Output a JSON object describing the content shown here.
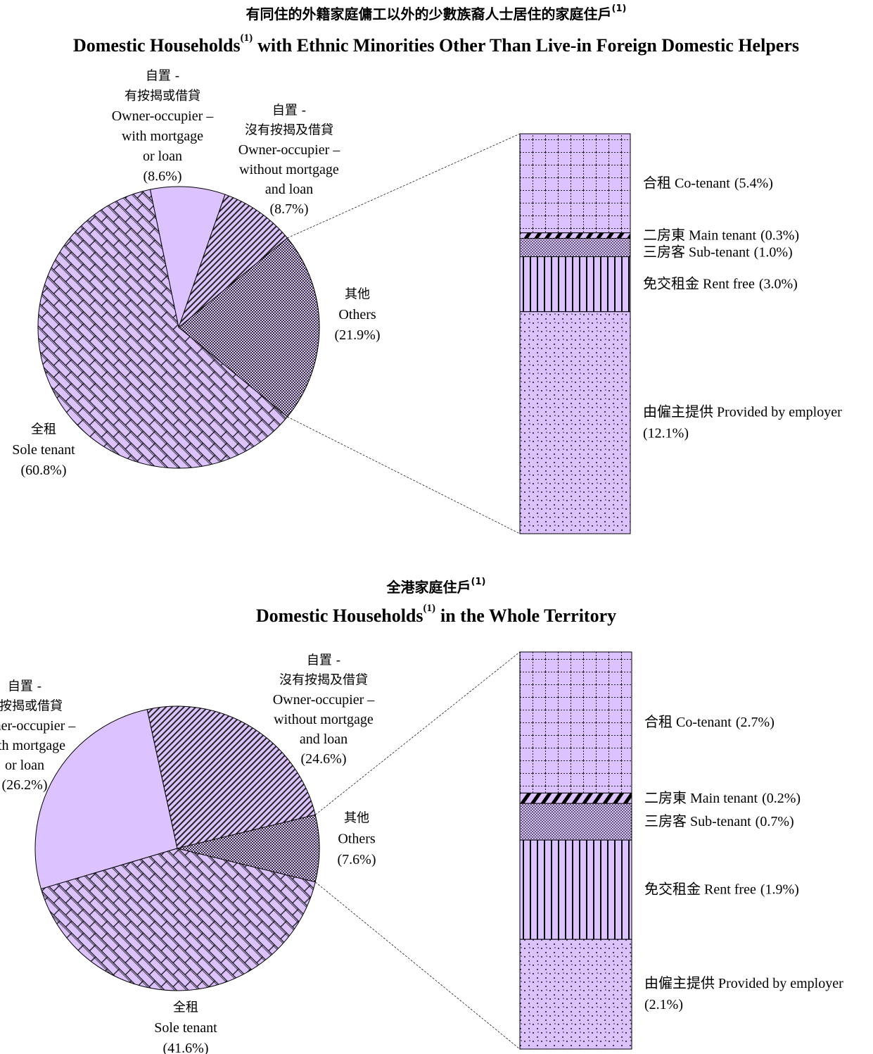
{
  "chart_data": [
    {
      "type": "pie",
      "title_zh": "有同住的外籍家庭傭工以外的少數族裔人士居住的家庭住戶",
      "title_note": "(1)",
      "title_en": "Domestic Households",
      "title_en_rest": "with Ethnic Minorities Other Than Live-in Foreign Domestic Helpers",
      "color": "#dcc2ff",
      "categories": [
        {
          "zh": [
            "自置 -",
            "有按揭或借貸"
          ],
          "en": [
            "Owner-occupier –",
            "with mortgage",
            "or loan"
          ]
        },
        {
          "zh": [
            "自置 -",
            "沒有按揭及借貸"
          ],
          "en": [
            "Owner-occupier –",
            "without mortgage",
            "and loan"
          ]
        },
        {
          "zh": [
            "其他"
          ],
          "en": [
            "Others"
          ]
        },
        {
          "zh": [
            "全租"
          ],
          "en": [
            "Sole tenant"
          ]
        }
      ],
      "values": [
        8.6,
        8.7,
        21.9,
        60.8
      ],
      "value_labels": [
        "(8.6%)",
        "(8.7%)",
        "(21.9%)",
        "(60.8%)"
      ],
      "breakdown": {
        "type": "bar",
        "categories": [
          "合租 Co-tenant",
          "二房東 Main tenant",
          "三房客 Sub-tenant",
          "免交租金 Rent free",
          "由僱主提供 Provided by employer"
        ],
        "values": [
          5.4,
          0.3,
          1.0,
          3.0,
          12.1
        ],
        "value_labels": [
          "(5.4%)",
          "(0.3%)",
          "(1.0%)",
          "(3.0%)",
          "(12.1%)"
        ]
      }
    },
    {
      "type": "pie",
      "title_zh": "全港家庭住戶",
      "title_note": "(1)",
      "title_en": "Domestic Households",
      "title_en_rest": "in the Whole Territory",
      "color": "#dcc2ff",
      "categories": [
        {
          "zh": [
            "自置 -",
            "有按揭或借貸"
          ],
          "en": [
            "Owner-occupier –",
            "with mortgage",
            "or loan"
          ]
        },
        {
          "zh": [
            "自置 -",
            "沒有按揭及借貸"
          ],
          "en": [
            "Owner-occupier –",
            "without mortgage",
            "and loan"
          ]
        },
        {
          "zh": [
            "其他"
          ],
          "en": [
            "Others"
          ]
        },
        {
          "zh": [
            "全租"
          ],
          "en": [
            "Sole tenant"
          ]
        }
      ],
      "values": [
        26.2,
        24.6,
        7.6,
        41.6
      ],
      "value_labels": [
        "(26.2%)",
        "(24.6%)",
        "(7.6%)",
        "(41.6%)"
      ],
      "breakdown": {
        "type": "bar",
        "categories": [
          "合租 Co-tenant",
          "二房東 Main tenant",
          "三房客 Sub-tenant",
          "免交租金 Rent free",
          "由僱主提供 Provided by employer"
        ],
        "values": [
          2.7,
          0.2,
          0.7,
          1.9,
          2.1
        ],
        "value_labels": [
          "(2.7%)",
          "(0.2%)",
          "(0.7%)",
          "(1.9%)",
          "(2.1%)"
        ]
      }
    }
  ]
}
